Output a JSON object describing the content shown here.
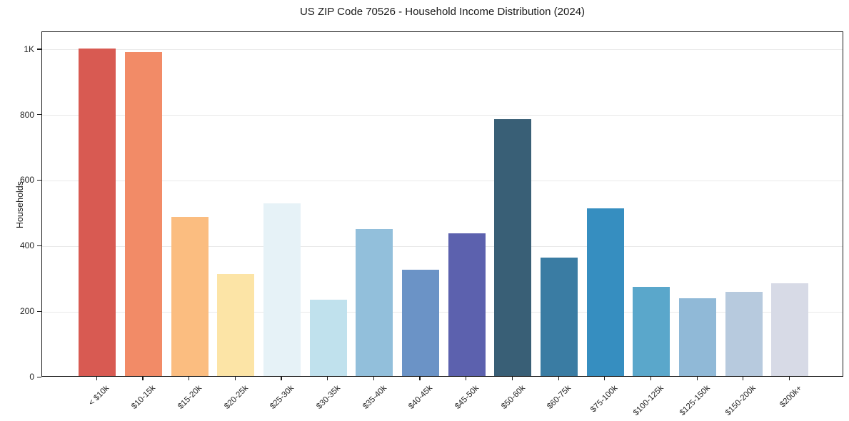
{
  "chart_data": {
    "type": "bar",
    "title": "US ZIP Code 70526 - Household Income Distribution (2024)",
    "xlabel": "",
    "ylabel": "Households",
    "categories": [
      "< $10k",
      "$10-15k",
      "$15-20k",
      "$20-25k",
      "$25-30k",
      "$30-35k",
      "$35-40k",
      "$40-45k",
      "$45-50k",
      "$50-60k",
      "$60-75k",
      "$75-100k",
      "$100-125k",
      "$125-150k",
      "$150-200k",
      "$200k+"
    ],
    "values": [
      1000,
      988,
      486,
      311,
      528,
      232,
      449,
      324,
      435,
      783,
      361,
      511,
      273,
      237,
      257,
      283
    ],
    "bar_colors": [
      "#d85a52",
      "#f28b67",
      "#fbbd80",
      "#fce4a6",
      "#e6f2f7",
      "#c0e1ed",
      "#92bfdb",
      "#6b93c6",
      "#5c61ae",
      "#395f76",
      "#3a7ca3",
      "#368ec0",
      "#5aa7cb",
      "#90b9d7",
      "#b7cade",
      "#d7dae6"
    ],
    "ylim": [
      0,
      1054
    ],
    "yticks": {
      "values": [
        0,
        200,
        400,
        600,
        800,
        1000
      ],
      "labels": [
        "0",
        "200",
        "400",
        "600",
        "800",
        "1K"
      ]
    },
    "grid": "horizontal",
    "legend": "none",
    "axis_color": "#1a1a1a",
    "grid_color": "#e9e9e9",
    "background": "#ffffff"
  }
}
